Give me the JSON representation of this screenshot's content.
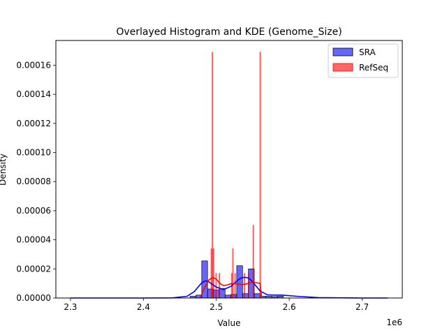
{
  "chart_data": {
    "type": "histogram+kde",
    "title": "Overlayed Histogram and KDE (Genome_Size)",
    "xlabel": "Value",
    "ylabel": "Density",
    "x_scale_label": "1e6",
    "x_scale": 1000000,
    "xlim": [
      2.28,
      2.755
    ],
    "ylim": [
      0,
      0.000177
    ],
    "x_ticks": [
      2.3,
      2.4,
      2.5,
      2.6,
      2.7
    ],
    "x_tick_labels": [
      "2.3",
      "2.4",
      "2.5",
      "2.6",
      "2.7"
    ],
    "y_ticks": [
      0,
      2e-05,
      4e-05,
      6e-05,
      8e-05,
      0.0001,
      0.00012,
      0.00014,
      0.00016
    ],
    "y_tick_labels": [
      "0.00000",
      "0.00002",
      "0.00004",
      "0.00006",
      "0.00008",
      "0.00010",
      "0.00012",
      "0.00014",
      "0.00016"
    ],
    "grid": false,
    "legend_position": "top-right",
    "series": [
      {
        "name": "SRA",
        "color": "#0000ff",
        "bars": [
          {
            "x0": 2.464,
            "x1": 2.472,
            "density": 1.2e-06
          },
          {
            "x0": 2.472,
            "x1": 2.48,
            "density": 2e-06
          },
          {
            "x0": 2.48,
            "x1": 2.488,
            "density": 2.55e-05
          },
          {
            "x0": 2.488,
            "x1": 2.496,
            "density": 6.2e-06
          },
          {
            "x0": 2.496,
            "x1": 2.504,
            "density": 5.5e-06
          },
          {
            "x0": 2.504,
            "x1": 2.512,
            "density": 6.5e-06
          },
          {
            "x0": 2.512,
            "x1": 2.52,
            "density": 2e-06
          },
          {
            "x0": 2.52,
            "x1": 2.528,
            "density": 2.5e-06
          },
          {
            "x0": 2.528,
            "x1": 2.536,
            "density": 2.22e-05
          },
          {
            "x0": 2.536,
            "x1": 2.544,
            "density": 3e-06
          },
          {
            "x0": 2.544,
            "x1": 2.552,
            "density": 2e-05
          },
          {
            "x0": 2.552,
            "x1": 2.56,
            "density": 3e-06
          },
          {
            "x0": 2.56,
            "x1": 2.568,
            "density": 1.2e-06
          },
          {
            "x0": 2.568,
            "x1": 2.576,
            "density": 1.2e-06
          },
          {
            "x0": 2.576,
            "x1": 2.584,
            "density": 1e-06
          },
          {
            "x0": 2.584,
            "x1": 2.592,
            "density": 1.2e-06
          }
        ],
        "kde": [
          [
            2.3,
            0.0
          ],
          [
            2.4,
            0.0
          ],
          [
            2.44,
            1e-07
          ],
          [
            2.46,
            1.2e-06
          ],
          [
            2.47,
            4.5e-06
          ],
          [
            2.48,
            1.05e-05
          ],
          [
            2.485,
            1.18e-05
          ],
          [
            2.49,
            1.1e-05
          ],
          [
            2.5,
            7.5e-06
          ],
          [
            2.51,
            5.8e-06
          ],
          [
            2.52,
            8e-06
          ],
          [
            2.53,
            1.25e-05
          ],
          [
            2.535,
            1.4e-05
          ],
          [
            2.54,
            1.42e-05
          ],
          [
            2.545,
            1.35e-05
          ],
          [
            2.55,
            1.1e-05
          ],
          [
            2.56,
            4.8e-06
          ],
          [
            2.57,
            2.2e-06
          ],
          [
            2.58,
            2e-06
          ],
          [
            2.59,
            2e-06
          ],
          [
            2.61,
            1.2e-06
          ],
          [
            2.64,
            3e-07
          ],
          [
            2.7,
            0.0
          ],
          [
            2.735,
            0.0
          ]
        ]
      },
      {
        "name": "RefSeq",
        "color": "#ff0000",
        "bars": [
          {
            "x0": 2.4925,
            "x1": 2.494,
            "density": 3.4e-05
          },
          {
            "x0": 2.494,
            "x1": 2.4955,
            "density": 0.000169
          },
          {
            "x0": 2.4955,
            "x1": 2.497,
            "density": 3.4e-05
          },
          {
            "x0": 2.499,
            "x1": 2.5005,
            "density": 1.7e-05
          },
          {
            "x0": 2.5035,
            "x1": 2.505,
            "density": 1.7e-05
          },
          {
            "x0": 2.5205,
            "x1": 2.522,
            "density": 1.7e-05
          },
          {
            "x0": 2.522,
            "x1": 2.5235,
            "density": 3.4e-05
          },
          {
            "x0": 2.525,
            "x1": 2.5265,
            "density": 1.7e-05
          },
          {
            "x0": 2.538,
            "x1": 2.5395,
            "density": 1.7e-05
          },
          {
            "x0": 2.5435,
            "x1": 2.545,
            "density": 1.7e-05
          },
          {
            "x0": 2.55,
            "x1": 2.5515,
            "density": 5e-05
          },
          {
            "x0": 2.5595,
            "x1": 2.561,
            "density": 0.000169
          }
        ],
        "kde": [
          [
            2.478,
            5e-07
          ],
          [
            2.485,
            8e-06
          ],
          [
            2.49,
            1.25e-05
          ],
          [
            2.495,
            1.4e-05
          ],
          [
            2.5,
            1.3e-05
          ],
          [
            2.505,
            1e-05
          ],
          [
            2.51,
            8.5e-06
          ],
          [
            2.515,
            9e-06
          ],
          [
            2.52,
            9.8e-06
          ],
          [
            2.525,
            1e-05
          ],
          [
            2.53,
            9.5e-06
          ],
          [
            2.535,
            9.2e-06
          ],
          [
            2.54,
            9.5e-06
          ],
          [
            2.545,
            1.02e-05
          ],
          [
            2.55,
            1.1e-05
          ],
          [
            2.555,
            1.05e-05
          ],
          [
            2.56,
            1e-05
          ],
          [
            2.562,
            1e-06
          ]
        ]
      }
    ]
  }
}
